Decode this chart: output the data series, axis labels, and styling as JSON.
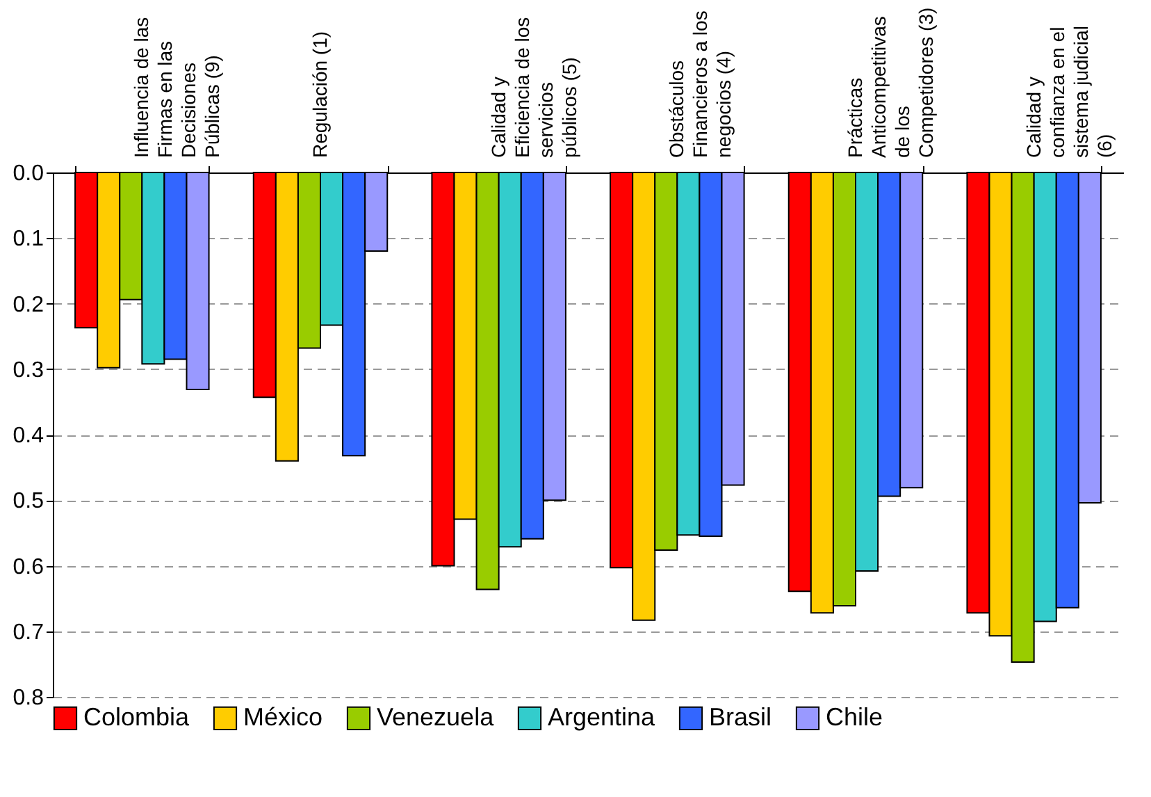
{
  "chart_data": {
    "type": "bar",
    "categories": [
      "Influencia de las Firmas en las Decisiones Públicas (9)",
      "Regulación (1)",
      "Calidad y Eficiencia de los servicios públicos (5)",
      "Obstáculos Financieros a los negocios (4)",
      "Prácticas Anticompetitivas de los Competidores (3)",
      "Calidad y confianza en el sistema judicial (6)"
    ],
    "series": [
      {
        "name": "Colombia",
        "color": "#ff0000",
        "values": [
          0.237,
          0.343,
          0.6,
          0.603,
          0.639,
          0.672
        ]
      },
      {
        "name": "México",
        "color": "#ffcc00",
        "values": [
          0.298,
          0.44,
          0.529,
          0.683,
          0.672,
          0.707
        ]
      },
      {
        "name": "Venezuela",
        "color": "#99cc00",
        "values": [
          0.194,
          0.268,
          0.636,
          0.576,
          0.661,
          0.747
        ]
      },
      {
        "name": "Argentina",
        "color": "#33cccc",
        "values": [
          0.292,
          0.233,
          0.571,
          0.553,
          0.608,
          0.685
        ]
      },
      {
        "name": "Brasil",
        "color": "#3366ff",
        "values": [
          0.285,
          0.432,
          0.559,
          0.555,
          0.494,
          0.664
        ]
      },
      {
        "name": "Chile",
        "color": "#9999ff",
        "values": [
          0.331,
          0.12,
          0.5,
          0.477,
          0.481,
          0.504
        ]
      }
    ],
    "ylim": [
      0.8,
      0
    ],
    "yticks": [
      {
        "value": 0,
        "label": "0.0"
      },
      0.1,
      0.2,
      0.3,
      0.4,
      0.5,
      0.6,
      0.7,
      0.8
    ],
    "grid": "y",
    "legend": "bottom"
  }
}
